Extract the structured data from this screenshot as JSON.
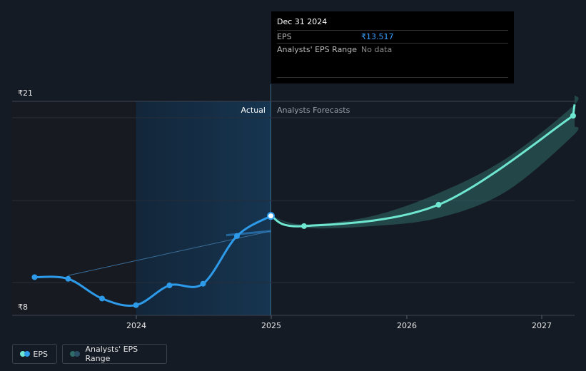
{
  "chart_data": {
    "type": "line",
    "currency": "₹",
    "y_tick_labels": [
      "₹21",
      "₹8"
    ],
    "ylim": [
      8,
      21
    ],
    "x_tick_labels": [
      "2024",
      "2025",
      "2026",
      "2027"
    ],
    "region_labels": {
      "actual": "Actual",
      "forecast": "Analysts Forecasts"
    },
    "series": [
      {
        "name": "EPS",
        "actual_points": [
          {
            "x": "2023-03-31",
            "y": 9.8
          },
          {
            "x": "2023-06-30",
            "y": 9.7
          },
          {
            "x": "2023-09-30",
            "y": 8.5
          },
          {
            "x": "2023-12-31",
            "y": 8.1
          },
          {
            "x": "2024-03-31",
            "y": 9.3
          },
          {
            "x": "2024-06-30",
            "y": 9.4
          },
          {
            "x": "2024-09-30",
            "y": 12.3
          },
          {
            "x": "2024-12-31",
            "y": 13.517
          }
        ],
        "forecast_points": [
          {
            "x": "2024-12-31",
            "y": 13.517
          },
          {
            "x": "2025-03-31",
            "y": 12.9
          },
          {
            "x": "2026-03-31",
            "y": 14.2
          },
          {
            "x": "2027-03-31",
            "y": 19.6
          }
        ]
      },
      {
        "name": "Analysts' EPS Range",
        "forecast_range": [
          {
            "x": "2024-12-31",
            "low": 13.517,
            "high": 13.517
          },
          {
            "x": "2025-03-31",
            "low": 12.8,
            "high": 13.0
          },
          {
            "x": "2025-09-30",
            "low": 12.9,
            "high": 13.5
          },
          {
            "x": "2026-03-31",
            "low": 13.4,
            "high": 14.9
          },
          {
            "x": "2026-09-30",
            "low": 15.0,
            "high": 17.0
          },
          {
            "x": "2027-03-31",
            "low": 18.4,
            "high": 20.2
          }
        ]
      }
    ],
    "trend_line": [
      {
        "x": "2023-06-30",
        "y": 9.9
      },
      {
        "x": "2024-12-31",
        "y": 12.6
      }
    ]
  },
  "tooltip": {
    "date": "Dec 31 2024",
    "eps_label": "EPS",
    "eps_value": "₹13.517",
    "range_label": "Analysts' EPS Range",
    "range_value": "No data"
  },
  "legend": {
    "eps": "EPS",
    "range": "Analysts' EPS Range"
  },
  "colors": {
    "eps_actual": "#2d9bea",
    "eps_forecast": "#6fe7d0",
    "range_fill": "#2f6b68",
    "highlight": "#163550"
  }
}
